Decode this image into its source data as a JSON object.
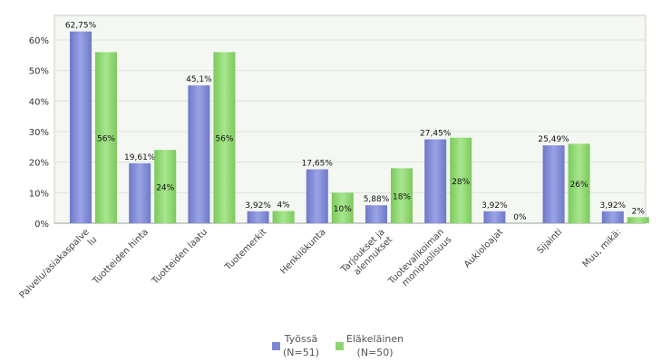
{
  "chart_data": {
    "type": "bar",
    "categories": [
      [
        "Palvelu/asiakaspalve",
        "lu"
      ],
      [
        "Tuotteiden hinta"
      ],
      [
        "Tuotteiden laatu"
      ],
      [
        "Tuotemerkit"
      ],
      [
        "Henkilökunta"
      ],
      [
        "Tarjoukset ja",
        "alennukset"
      ],
      [
        "Tuotevalikoiman",
        "monipuolisuus"
      ],
      [
        "Aukioloajat"
      ],
      [
        "Sijainti"
      ],
      [
        "Muu, mikä:"
      ]
    ],
    "series": [
      {
        "name": "Työssä",
        "name_line2": "(N=51)",
        "color": "#7b86d4",
        "values": [
          62.75,
          19.61,
          45.1,
          3.92,
          17.65,
          5.88,
          27.45,
          3.92,
          25.49,
          3.92
        ],
        "labels": [
          "62,75%",
          "19,61%",
          "45,1%",
          "3,92%",
          "17,65%",
          "5,88%",
          "27,45%",
          "3,92%",
          "25,49%",
          "3,92%"
        ]
      },
      {
        "name": "Eläkeläinen",
        "name_line2": "(N=50)",
        "color": "#8fd672",
        "values": [
          56,
          24,
          56,
          4,
          10,
          18,
          28,
          0,
          26,
          2
        ],
        "labels": [
          "56%",
          "24%",
          "56%",
          "4%",
          "10%",
          "18%",
          "28%",
          "0%",
          "26%",
          "2%"
        ]
      }
    ],
    "yticks": [
      "0%",
      "10%",
      "20%",
      "30%",
      "40%",
      "50%",
      "60%"
    ],
    "ylim": [
      0,
      68
    ],
    "grid": true,
    "legend_position": "bottom"
  }
}
